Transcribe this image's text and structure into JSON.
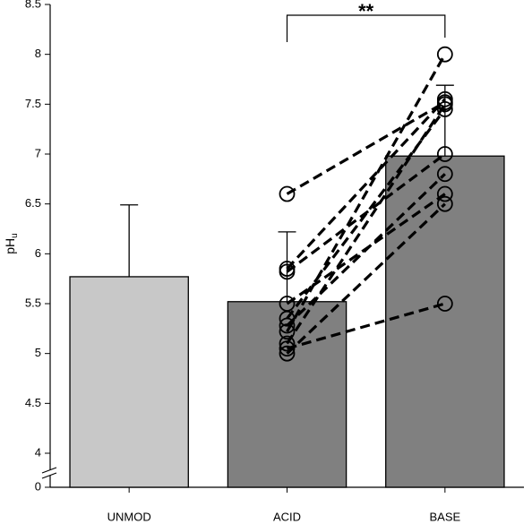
{
  "chart_data": {
    "type": "bar",
    "categories": [
      "UNMOD",
      "ACID",
      "BASE"
    ],
    "values": [
      5.77,
      5.52,
      6.98
    ],
    "errors": [
      0.72,
      0.7,
      0.71
    ],
    "colors": [
      "#c8c8c8",
      "#808080",
      "#808080"
    ],
    "ylabel": "pH",
    "ylabel_subscript": "u",
    "ylim": [
      0,
      8.5
    ],
    "y_break": [
      0,
      4
    ],
    "yticks": [
      0,
      4,
      4.5,
      5,
      5.5,
      6,
      6.5,
      7,
      7.5,
      8,
      8.5
    ],
    "paired_values": [
      [
        6.6,
        7.52
      ],
      [
        5.85,
        7.55
      ],
      [
        5.82,
        7.0
      ],
      [
        5.5,
        6.6
      ],
      [
        5.35,
        7.45
      ],
      [
        5.28,
        6.8
      ],
      [
        5.22,
        8.0
      ],
      [
        5.1,
        7.5
      ],
      [
        5.0,
        6.5
      ],
      [
        5.05,
        5.5
      ]
    ],
    "annotation": "**"
  }
}
